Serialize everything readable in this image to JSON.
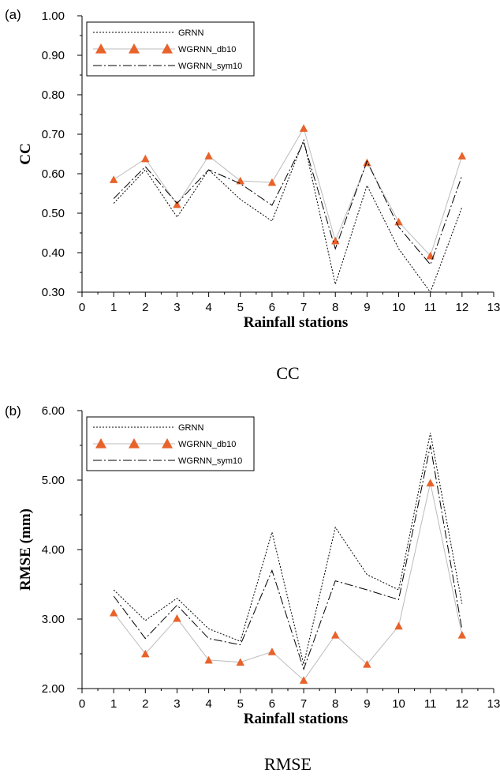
{
  "chart_data": [
    {
      "type": "line",
      "panel_label": "(a)",
      "caption": "CC",
      "ylabel": "CC",
      "xlabel": "Rainfall stations",
      "x": [
        1,
        2,
        3,
        4,
        5,
        6,
        7,
        8,
        9,
        10,
        11,
        12
      ],
      "xlim": [
        0,
        13
      ],
      "xticks": [
        "0",
        "1",
        "2",
        "3",
        "4",
        "5",
        "6",
        "7",
        "8",
        "9",
        "10",
        "11",
        "12",
        "13"
      ],
      "ylim": [
        0.3,
        1.0
      ],
      "yticks": [
        "0.30",
        "0.40",
        "0.50",
        "0.60",
        "0.70",
        "0.80",
        "0.90",
        "1.00"
      ],
      "grid": false,
      "legend_position": "top-left",
      "series": [
        {
          "name": "GRNN",
          "style": "dotted",
          "values": [
            0.525,
            0.61,
            0.49,
            0.61,
            0.535,
            0.48,
            0.685,
            0.32,
            0.57,
            0.41,
            0.3,
            0.515
          ]
        },
        {
          "name": "WGRNN_db10",
          "style": "triangles",
          "color": "#e8622a",
          "line_color": "#bbbbbb",
          "values": [
            0.585,
            0.638,
            0.522,
            0.645,
            0.582,
            0.578,
            0.715,
            0.43,
            0.628,
            0.478,
            0.392,
            0.645
          ]
        },
        {
          "name": "WGRNN_sym10",
          "style": "dashdot",
          "values": [
            0.537,
            0.618,
            0.525,
            0.61,
            0.575,
            0.52,
            0.68,
            0.41,
            0.632,
            0.465,
            0.37,
            0.595
          ]
        }
      ]
    },
    {
      "type": "line",
      "panel_label": "(b)",
      "caption": "RMSE",
      "ylabel": "RMSE (mm)",
      "xlabel": "Rainfall stations",
      "x": [
        1,
        2,
        3,
        4,
        5,
        6,
        7,
        8,
        9,
        10,
        11,
        12
      ],
      "xlim": [
        0,
        13
      ],
      "xticks": [
        "0",
        "1",
        "2",
        "3",
        "4",
        "5",
        "6",
        "7",
        "8",
        "9",
        "10",
        "11",
        "12",
        "13"
      ],
      "ylim": [
        2.0,
        6.0
      ],
      "yticks": [
        "2.00",
        "3.00",
        "4.00",
        "5.00",
        "6.00"
      ],
      "grid": false,
      "legend_position": "top-left",
      "series": [
        {
          "name": "GRNN",
          "style": "dotted",
          "values": [
            3.42,
            2.98,
            3.3,
            2.86,
            2.68,
            4.25,
            2.35,
            4.32,
            3.64,
            3.42,
            5.68,
            3.22
          ]
        },
        {
          "name": "WGRNN_db10",
          "style": "triangles",
          "color": "#e8622a",
          "line_color": "#bbbbbb",
          "values": [
            3.09,
            2.5,
            3.01,
            2.41,
            2.38,
            2.53,
            2.12,
            2.77,
            2.35,
            2.9,
            4.96,
            2.77
          ]
        },
        {
          "name": "WGRNN_sym10",
          "style": "dashdot",
          "values": [
            3.33,
            2.72,
            3.2,
            2.72,
            2.63,
            3.7,
            2.28,
            3.55,
            3.42,
            3.28,
            5.5,
            2.85
          ]
        }
      ]
    }
  ]
}
